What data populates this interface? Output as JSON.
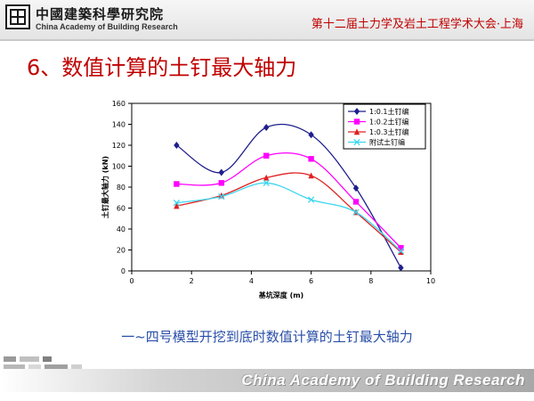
{
  "header": {
    "org_name_cn": "中國建築科學研究院",
    "org_name_en": "China Academy of Building Research",
    "conference": "第十二届土力学及岩土工程学术大会·上海"
  },
  "slide": {
    "title": "6、数值计算的土钉最大轴力",
    "caption": "一~四号模型开挖到底时数值计算的土钉最大轴力"
  },
  "footer": {
    "text": "China Academy of Building Research"
  },
  "colors": {
    "header_text": "#c00000",
    "caption_text": "#2a4fa8"
  },
  "chart_data": {
    "type": "line",
    "xlabel": "基坑深度 (m)",
    "ylabel": "土钉最大轴力 (kN)",
    "xlim": [
      0,
      10
    ],
    "ylim": [
      0,
      160
    ],
    "xticks": [
      "0",
      "2",
      "4",
      "6",
      "8",
      "10"
    ],
    "yticks": [
      "0",
      "20",
      "40",
      "60",
      "80",
      "100",
      "120",
      "140",
      "160"
    ],
    "grid": false,
    "legend_position": "top-right",
    "series": [
      {
        "name": "1:0.1土钉编",
        "color": "#1f1f8c",
        "marker": "diamond",
        "x": [
          1.5,
          3.0,
          4.5,
          6.0,
          7.5,
          9.0
        ],
        "y": [
          120,
          94,
          137,
          130,
          79,
          3
        ]
      },
      {
        "name": "1:0.2土钉编",
        "color": "#ff00ff",
        "marker": "square",
        "x": [
          1.5,
          3.0,
          4.5,
          6.0,
          7.5,
          9.0
        ],
        "y": [
          83,
          84,
          110,
          107,
          66,
          22
        ]
      },
      {
        "name": "1:0.3土钉编",
        "color": "#e02020",
        "marker": "triangle",
        "x": [
          1.5,
          3.0,
          4.5,
          6.0,
          7.5,
          9.0
        ],
        "y": [
          62,
          72,
          89,
          91,
          56,
          18
        ]
      },
      {
        "name": "附试土钉编",
        "color": "#3ad6f0",
        "marker": "x",
        "x": [
          1.5,
          3.0,
          4.5,
          6.0,
          7.5,
          9.0
        ],
        "y": [
          65,
          71,
          84,
          68,
          56,
          19
        ]
      }
    ]
  }
}
